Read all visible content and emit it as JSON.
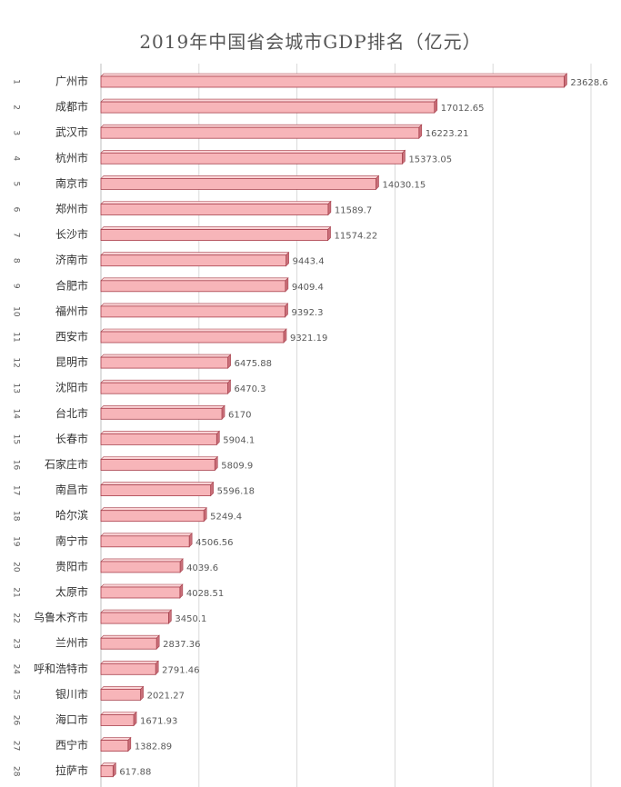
{
  "chart_data": {
    "type": "bar",
    "orientation": "horizontal",
    "title": "2019年中国省会城市GDP排名（亿元）",
    "xlabel": "",
    "ylabel": "",
    "xlim": [
      0,
      25000
    ],
    "grid": true,
    "ranks": [
      "1",
      "2",
      "3",
      "4",
      "5",
      "6",
      "7",
      "8",
      "9",
      "10",
      "11",
      "12",
      "13",
      "14",
      "15",
      "16",
      "17",
      "18",
      "19",
      "20",
      "21",
      "22",
      "23",
      "24",
      "25",
      "26",
      "27",
      "28"
    ],
    "categories": [
      "广州市",
      "成都市",
      "武汉市",
      "杭州市",
      "南京市",
      "郑州市",
      "长沙市",
      "济南市",
      "合肥市",
      "福州市",
      "西安市",
      "昆明市",
      "沈阳市",
      "台北市",
      "长春市",
      "石家庄市",
      "南昌市",
      "哈尔滨",
      "南宁市",
      "贵阳市",
      "太原市",
      "乌鲁木齐市",
      "兰州市",
      "呼和浩特市",
      "银川市",
      "海口市",
      "西宁市",
      "拉萨市"
    ],
    "values": [
      23628.6,
      17012.65,
      16223.21,
      15373.05,
      14030.15,
      11589.7,
      11574.22,
      9443.4,
      9409.4,
      9392.3,
      9321.19,
      6475.88,
      6470.3,
      6170,
      5904.1,
      5809.9,
      5596.18,
      5249.4,
      4506.56,
      4039.6,
      4028.51,
      3450.1,
      2837.36,
      2791.46,
      2021.27,
      1671.93,
      1382.89,
      617.88
    ],
    "value_labels": [
      "23628.6",
      "17012.65",
      "16223.21",
      "15373.05",
      "14030.15",
      "11589.7",
      "11574.22",
      "9443.4",
      "9409.4",
      "9392.3",
      "9321.19",
      "6475.88",
      "6470.3",
      "6170",
      "5904.1",
      "5809.9",
      "5596.18",
      "5249.4",
      "4506.56",
      "4039.6",
      "4028.51",
      "3450.1",
      "2837.36",
      "2791.46",
      "2021.27",
      "1671.93",
      "1382.89",
      "617.88"
    ],
    "colors": {
      "bar_face": "#f7b5b9",
      "bar_top": "#fad4d6",
      "bar_side": "#c9707a",
      "bar_edge": "#a8424e",
      "grid": "#d9d9d9",
      "axis": "#bfbfbf",
      "text": "#595959"
    }
  }
}
